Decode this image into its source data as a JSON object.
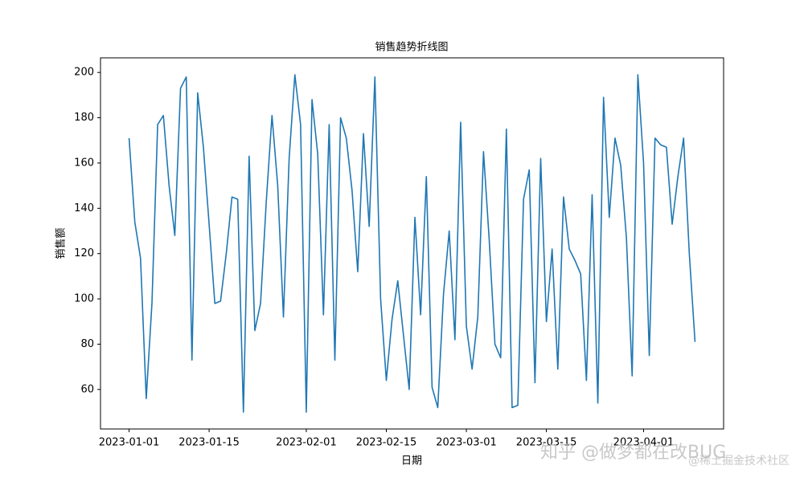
{
  "chart_data": {
    "type": "line",
    "title": "销售趋势折线图",
    "x_label": "日期",
    "y_label": "销售额",
    "x": [
      "2023-01-01",
      "2023-01-02",
      "2023-01-03",
      "2023-01-04",
      "2023-01-05",
      "2023-01-06",
      "2023-01-07",
      "2023-01-08",
      "2023-01-09",
      "2023-01-10",
      "2023-01-11",
      "2023-01-12",
      "2023-01-13",
      "2023-01-14",
      "2023-01-15",
      "2023-01-16",
      "2023-01-17",
      "2023-01-18",
      "2023-01-19",
      "2023-01-20",
      "2023-01-21",
      "2023-01-22",
      "2023-01-23",
      "2023-01-24",
      "2023-01-25",
      "2023-01-26",
      "2023-01-27",
      "2023-01-28",
      "2023-01-29",
      "2023-01-30",
      "2023-01-31",
      "2023-02-01",
      "2023-02-02",
      "2023-02-03",
      "2023-02-04",
      "2023-02-05",
      "2023-02-06",
      "2023-02-07",
      "2023-02-08",
      "2023-02-09",
      "2023-02-10",
      "2023-02-11",
      "2023-02-12",
      "2023-02-13",
      "2023-02-14",
      "2023-02-15",
      "2023-02-16",
      "2023-02-17",
      "2023-02-18",
      "2023-02-19",
      "2023-02-20",
      "2023-02-21",
      "2023-02-22",
      "2023-02-23",
      "2023-02-24",
      "2023-02-25",
      "2023-02-26",
      "2023-02-27",
      "2023-02-28",
      "2023-03-01",
      "2023-03-02",
      "2023-03-03",
      "2023-03-04",
      "2023-03-05",
      "2023-03-06",
      "2023-03-07",
      "2023-03-08",
      "2023-03-09",
      "2023-03-10",
      "2023-03-11",
      "2023-03-12",
      "2023-03-13",
      "2023-03-14",
      "2023-03-15",
      "2023-03-16",
      "2023-03-17",
      "2023-03-18",
      "2023-03-19",
      "2023-03-20",
      "2023-03-21",
      "2023-03-22",
      "2023-03-23",
      "2023-03-24",
      "2023-03-25",
      "2023-03-26",
      "2023-03-27",
      "2023-03-28",
      "2023-03-29",
      "2023-03-30",
      "2023-03-31",
      "2023-04-01",
      "2023-04-02",
      "2023-04-03",
      "2023-04-04",
      "2023-04-05",
      "2023-04-06",
      "2023-04-07",
      "2023-04-08",
      "2023-04-09",
      "2023-04-10"
    ],
    "series": [
      {
        "color": "#1f77b4",
        "values": [
          171,
          134,
          118,
          56,
          98,
          177,
          181,
          150,
          128,
          193,
          198,
          73,
          191,
          167,
          133,
          98,
          99,
          120,
          145,
          144,
          50,
          163,
          86,
          98,
          143,
          181,
          150,
          92,
          162,
          199,
          177,
          50,
          188,
          164,
          93,
          177,
          73,
          180,
          171,
          148,
          112,
          173,
          132,
          198,
          100,
          64,
          91,
          108,
          84,
          60,
          136,
          93,
          154,
          61,
          52,
          102,
          130,
          82,
          178,
          88,
          69,
          92,
          165,
          126,
          80,
          74,
          175,
          52,
          53,
          144,
          157,
          63,
          162,
          90,
          122,
          69,
          145,
          122,
          117,
          111,
          64,
          146,
          54,
          189,
          136,
          171,
          159,
          127,
          66,
          199,
          160,
          75,
          171,
          168,
          167,
          133,
          154,
          171,
          120,
          81
        ]
      }
    ],
    "xlim": [
      "2022-12-27",
      "2023-04-15"
    ],
    "xticks": [
      "2023-01-01",
      "2023-01-15",
      "2023-02-01",
      "2023-02-15",
      "2023-03-01",
      "2023-03-15",
      "2023-04-01"
    ],
    "ylim": [
      42.55,
      206.45
    ],
    "yticks": [
      60,
      80,
      100,
      120,
      140,
      160,
      180,
      200
    ],
    "watermark": [
      "知乎 @做梦都在改BUG",
      "@稀土掘金技术社区"
    ]
  }
}
